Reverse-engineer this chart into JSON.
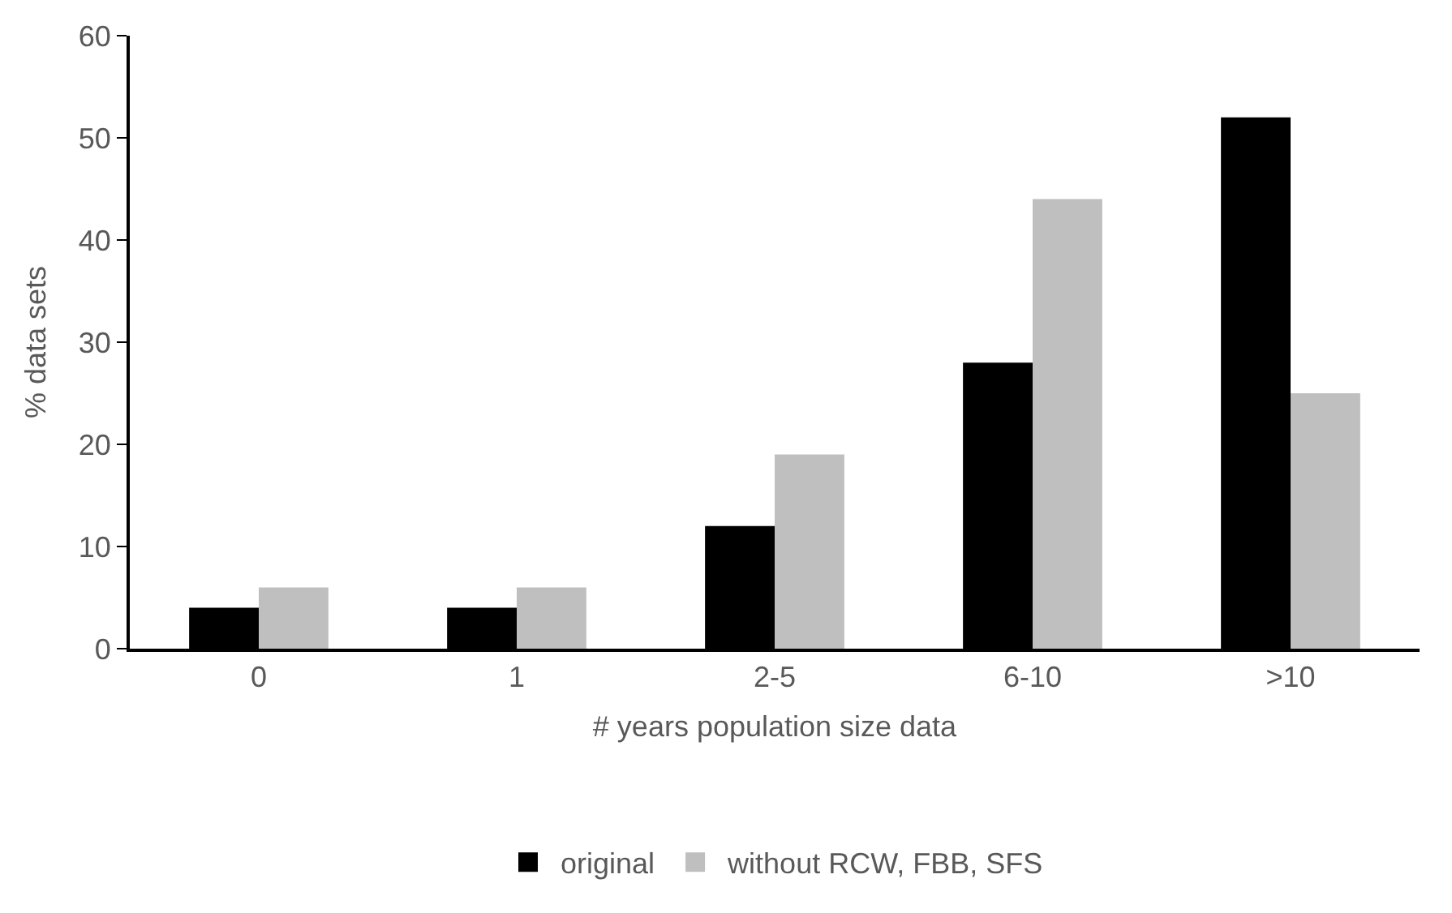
{
  "chart_data": {
    "type": "bar",
    "xlabel": "# years population size data",
    "ylabel": "% data sets",
    "categories": [
      "0",
      "1",
      "2-5",
      "6-10",
      ">10"
    ],
    "series": [
      {
        "name": "original",
        "color": "#000000",
        "values": [
          4,
          4,
          12,
          28,
          52
        ]
      },
      {
        "name": "without RCW, FBB, SFS",
        "color": "#bfbfbf",
        "values": [
          6,
          6,
          19,
          44,
          25
        ]
      }
    ],
    "ylim": [
      0,
      60
    ],
    "yticks": [
      0,
      10,
      20,
      30,
      40,
      50,
      60
    ],
    "legend": "bottom"
  }
}
